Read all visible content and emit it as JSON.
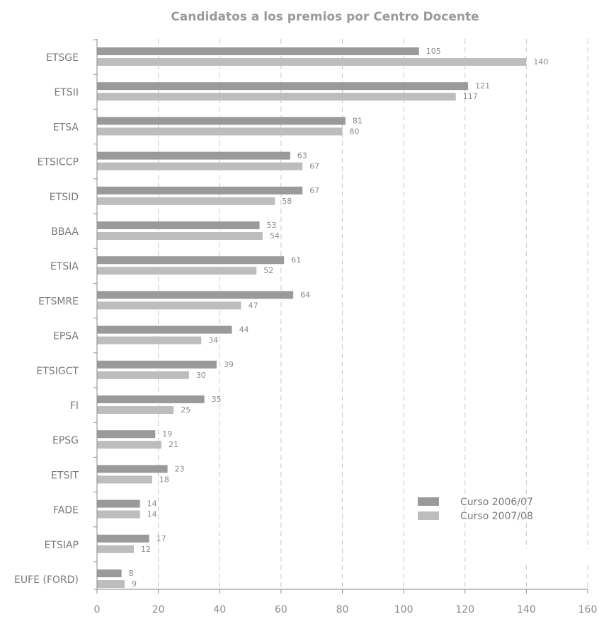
{
  "chart_data": {
    "type": "bar",
    "orientation": "horizontal",
    "title": "Candidatos a los premios por Centro Docente",
    "xlabel": "",
    "ylabel": "",
    "xlim": [
      0,
      160
    ],
    "xticks": [
      0,
      20,
      40,
      60,
      80,
      100,
      120,
      140,
      160
    ],
    "grid": "vertical-dashed",
    "legend_position": "bottom-right",
    "categories": [
      "ETSGE",
      "ETSII",
      "ETSA",
      "ETSICCP",
      "ETSID",
      "BBAA",
      "ETSIA",
      "ETSMRE",
      "EPSA",
      "ETSIGCT",
      "FI",
      "EPSG",
      "ETSIT",
      "FADE",
      "ETSIAP",
      "EUFE (FORD)"
    ],
    "series": [
      {
        "name": "Curso 2006/07",
        "color": "#9a9a9a",
        "values": [
          105,
          121,
          81,
          63,
          67,
          53,
          61,
          64,
          44,
          39,
          35,
          19,
          23,
          14,
          17,
          8
        ]
      },
      {
        "name": "Curso 2007/08",
        "color": "#bdbdbd",
        "values": [
          140,
          117,
          80,
          67,
          58,
          54,
          52,
          47,
          34,
          30,
          25,
          21,
          18,
          14,
          12,
          9
        ]
      }
    ]
  }
}
